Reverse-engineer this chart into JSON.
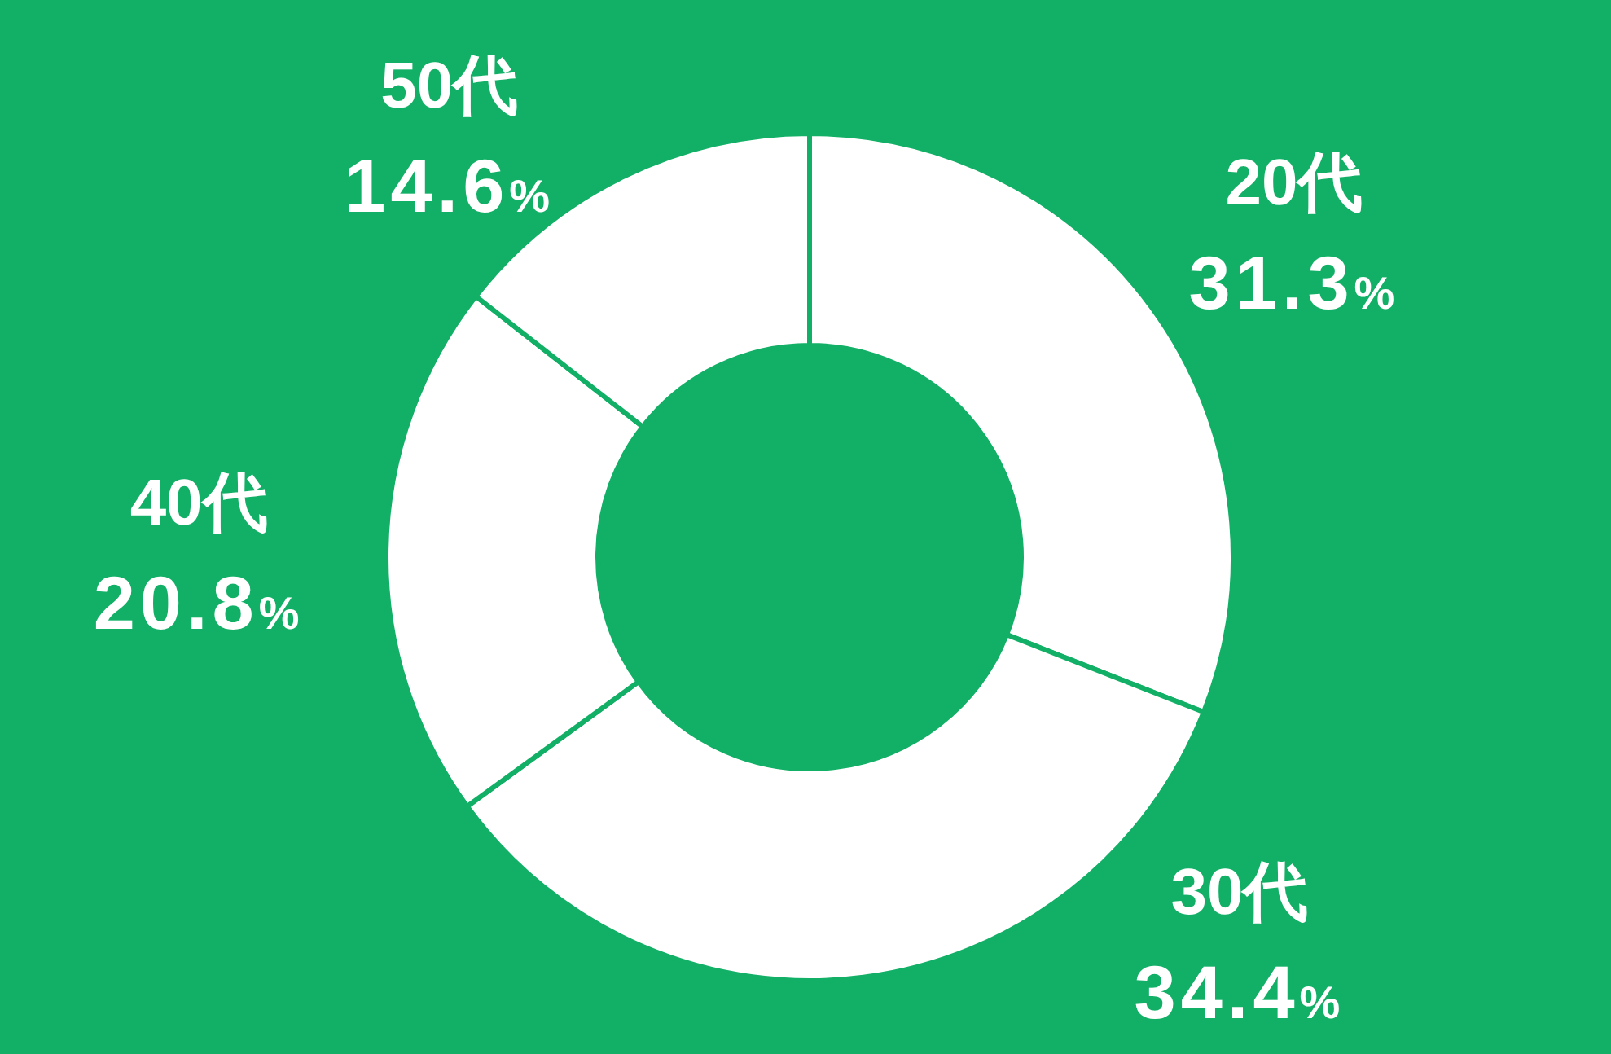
{
  "chart_data": {
    "type": "donut",
    "categories": [
      "20代",
      "30代",
      "40代",
      "50代"
    ],
    "values": [
      31.3,
      34.4,
      20.8,
      14.6
    ],
    "colors": [
      "#ffffff",
      "#ffffff",
      "#ffffff",
      "#ffffff"
    ],
    "value_labels": [
      "31.3%",
      "34.4%",
      "20.8%",
      "14.6%"
    ]
  }
}
